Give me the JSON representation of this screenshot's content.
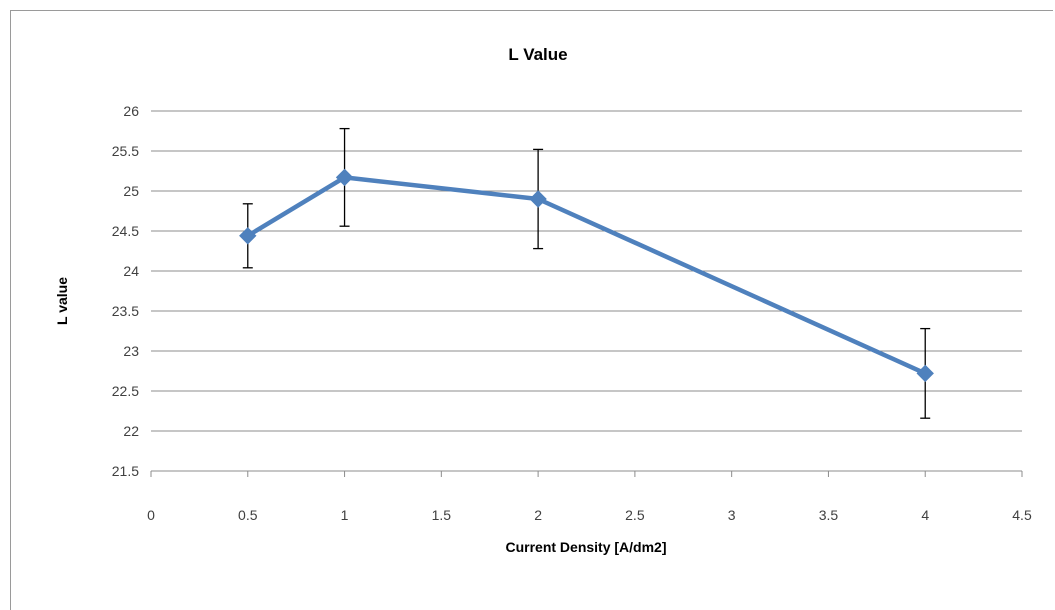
{
  "chart_data": {
    "type": "line",
    "title": "L Value",
    "xlabel": "Current Density [A/dm2]",
    "ylabel": "L value",
    "xlim": [
      0,
      4.5
    ],
    "ylim": [
      21.5,
      26
    ],
    "x_ticks": [
      "0",
      "0.5",
      "1",
      "1.5",
      "2",
      "2.5",
      "3",
      "3.5",
      "4",
      "4.5"
    ],
    "y_ticks": [
      "21.5",
      "22",
      "22.5",
      "23",
      "23.5",
      "24",
      "24.5",
      "25",
      "25.5",
      "26"
    ],
    "grid": "horizontal",
    "series": [
      {
        "x": [
          0.5,
          1,
          2,
          4
        ],
        "values": [
          24.44,
          25.17,
          24.9,
          22.72
        ],
        "error": [
          0.4,
          0.61,
          0.62,
          0.56
        ],
        "color": "#4f81bd",
        "marker": "diamond"
      }
    ]
  }
}
